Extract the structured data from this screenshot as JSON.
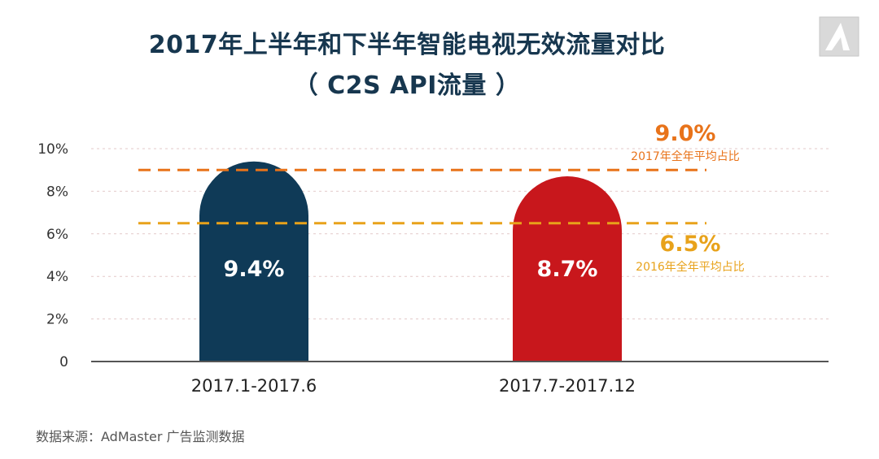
{
  "title": {
    "line1": "2017年上半年和下半年智能电视无效流量对比",
    "line2": "（ C2S API流量 ）"
  },
  "source": "数据来源：AdMaster 广告监测数据",
  "colors": {
    "bar_h1": "#0f3a57",
    "bar_h2": "#c8171c",
    "ref_2017": "#e8731a",
    "ref_2016": "#e8a21a",
    "title": "#17374f"
  },
  "chart_data": {
    "type": "bar",
    "title": "2017年上半年和下半年智能电视无效流量对比（ C2S API流量 ）",
    "categories": [
      "2017.1-2017.6",
      "2017.7-2017.12"
    ],
    "values": [
      9.4,
      8.7
    ],
    "value_labels": [
      "9.4%",
      "8.7%"
    ],
    "ylim": [
      0,
      10
    ],
    "yticks": [
      0,
      2,
      4,
      6,
      8,
      10
    ],
    "ytick_labels": [
      "0",
      "2%",
      "4%",
      "6%",
      "8%",
      "10%"
    ],
    "grid": true,
    "reference_lines": [
      {
        "value": 9.0,
        "label": "9.0%",
        "caption": "2017年全年平均占比"
      },
      {
        "value": 6.5,
        "label": "6.5%",
        "caption": "2016年全年平均占比"
      }
    ]
  }
}
